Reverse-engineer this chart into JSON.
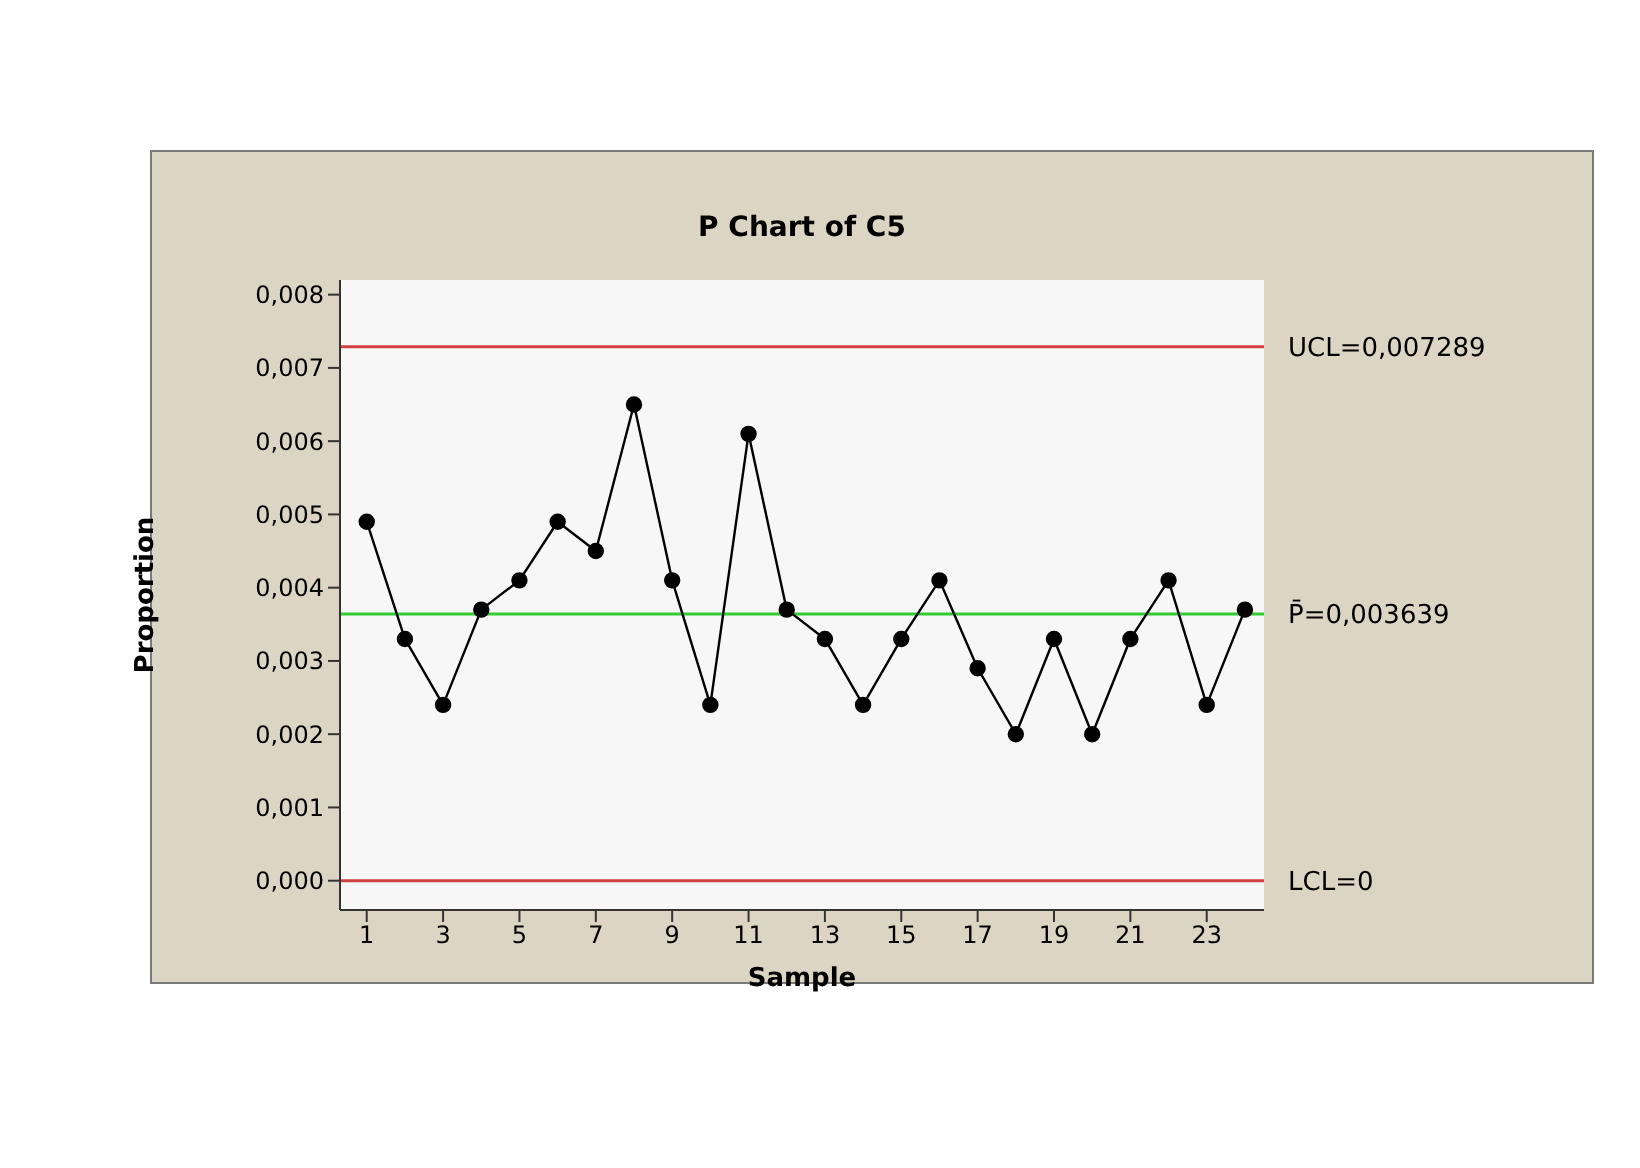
{
  "chart_data": {
    "type": "line",
    "title": "P Chart of C5",
    "xlabel": "Sample",
    "ylabel": "Proportion",
    "x": [
      1,
      2,
      3,
      4,
      5,
      6,
      7,
      8,
      9,
      10,
      11,
      12,
      13,
      14,
      15,
      16,
      17,
      18,
      19,
      20,
      21,
      22,
      23,
      24
    ],
    "values": [
      0.0049,
      0.0033,
      0.0024,
      0.0037,
      0.0041,
      0.0049,
      0.0045,
      0.0065,
      0.0041,
      0.0024,
      0.0061,
      0.0037,
      0.0033,
      0.0024,
      0.0033,
      0.0041,
      0.0029,
      0.002,
      0.0033,
      0.002,
      0.0033,
      0.0041,
      0.0024,
      0.0037
    ],
    "color": "#000000",
    "marker": "circle",
    "line_style": "solid",
    "xlim": [
      0.3,
      24.5
    ],
    "xticks": [
      1,
      3,
      5,
      7,
      9,
      11,
      13,
      15,
      17,
      19,
      21,
      23
    ],
    "ylim": [
      -0.0004,
      0.0082
    ],
    "yticks": [
      {
        "value": 0,
        "label": "0,000"
      },
      {
        "value": 0.001,
        "label": "0,001"
      },
      {
        "value": 0.002,
        "label": "0,002"
      },
      {
        "value": 0.003,
        "label": "0,003"
      },
      {
        "value": 0.004,
        "label": "0,004"
      },
      {
        "value": 0.005,
        "label": "0,005"
      },
      {
        "value": 0.006,
        "label": "0,006"
      },
      {
        "value": 0.007,
        "label": "0,007"
      },
      {
        "value": 0.008,
        "label": "0,008"
      }
    ],
    "ref_lines": [
      {
        "axis": "y",
        "value": 0.007289,
        "label": "UCL=0,007289",
        "color": "#d04040"
      },
      {
        "axis": "y",
        "value": 0.003639,
        "label": "P̄=0,003639",
        "color": "#33cc33"
      },
      {
        "axis": "y",
        "value": 0,
        "label": "LCL=0",
        "color": "#d04040"
      }
    ],
    "grid": false,
    "legend": false
  }
}
